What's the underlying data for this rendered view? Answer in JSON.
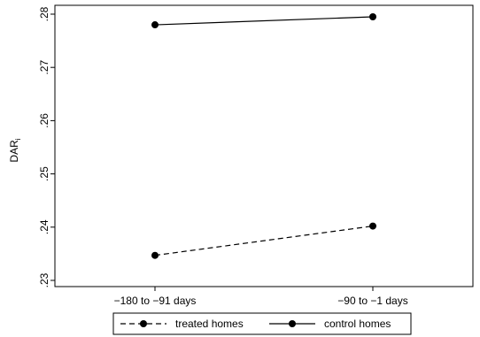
{
  "chart_data": {
    "type": "line",
    "categories": [
      "−180 to −91 days",
      "−90 to −1 days"
    ],
    "yticks": [
      ".23",
      ".24",
      ".25",
      ".26",
      ".27",
      ".28"
    ],
    "ylim": [
      0.23,
      0.28
    ],
    "ylabel": "DAR",
    "ylabel_subscript": "i",
    "grid": false,
    "legend_position": "bottom",
    "series": [
      {
        "name": "treated homes",
        "values": [
          0.2347,
          0.2402
        ],
        "line_style": "dashed",
        "color": "#000000"
      },
      {
        "name": "control homes",
        "values": [
          0.278,
          0.2795
        ],
        "line_style": "solid",
        "color": "#000000"
      }
    ]
  }
}
